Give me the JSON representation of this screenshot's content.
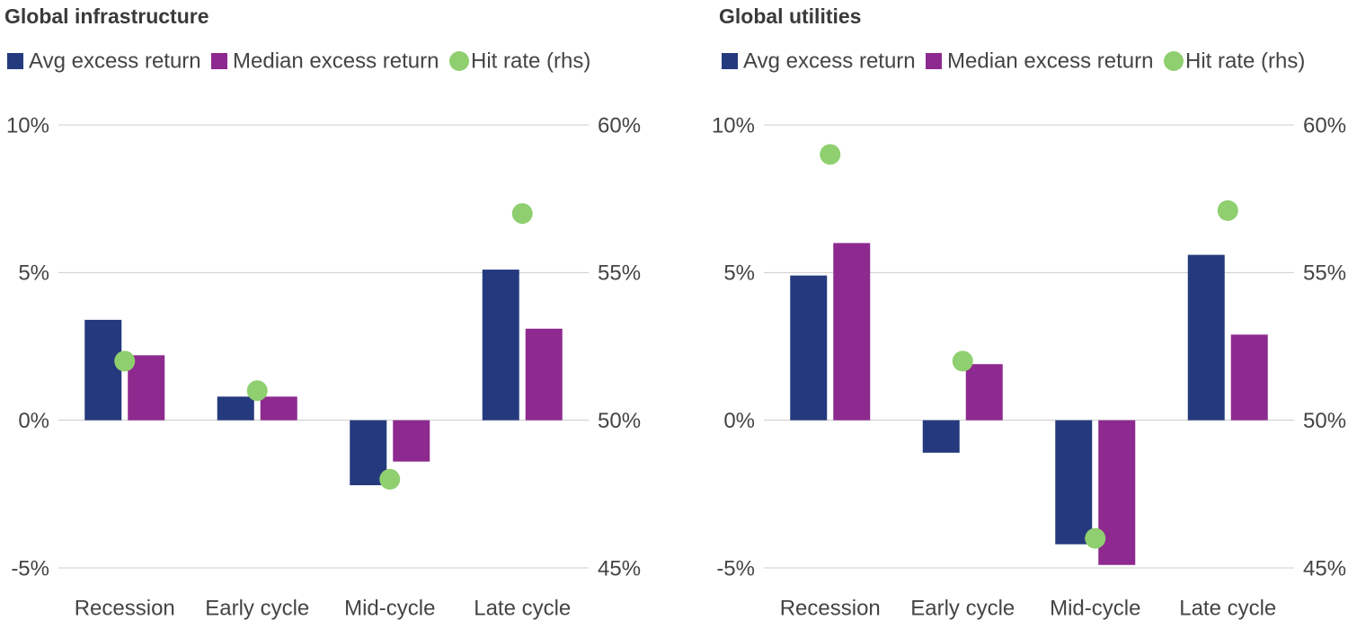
{
  "chart_data": [
    {
      "type": "bar",
      "title": "Global infrastructure",
      "categories": [
        "Recession",
        "Early cycle",
        "Mid-cycle",
        "Late cycle"
      ],
      "series": [
        {
          "name": "Avg excess return",
          "color": "#253a7e",
          "values": [
            3.4,
            0.8,
            -2.2,
            5.1
          ]
        },
        {
          "name": "Median excess return",
          "color": "#8e2a8f",
          "values": [
            2.2,
            0.8,
            -1.4,
            3.1
          ]
        },
        {
          "name": "Hit rate (rhs)",
          "color": "#8fcf6f",
          "type": "scatter",
          "axis": "y2",
          "values": [
            52.0,
            51.0,
            48.0,
            57.0
          ]
        }
      ],
      "ylim": [
        -5,
        10
      ],
      "yticks": [
        {
          "value": -5,
          "label": "-5%"
        },
        {
          "value": 0,
          "label": "0%"
        },
        {
          "value": 5,
          "label": "5%"
        },
        {
          "value": 10,
          "label": "10%"
        }
      ],
      "y2lim": [
        45,
        60
      ],
      "y2ticks": [
        {
          "value": 45,
          "label": "45%"
        },
        {
          "value": 50,
          "label": "50%"
        },
        {
          "value": 55,
          "label": "55%"
        },
        {
          "value": 60,
          "label": "60%"
        }
      ],
      "grid": true,
      "legend": "top"
    },
    {
      "type": "bar",
      "title": "Global utilities",
      "categories": [
        "Recession",
        "Early cycle",
        "Mid-cycle",
        "Late cycle"
      ],
      "series": [
        {
          "name": "Avg excess return",
          "color": "#253a7e",
          "values": [
            4.9,
            -1.1,
            -4.2,
            5.6
          ]
        },
        {
          "name": "Median excess return",
          "color": "#8e2a8f",
          "values": [
            6.0,
            1.9,
            -4.9,
            2.9
          ]
        },
        {
          "name": "Hit rate (rhs)",
          "color": "#8fcf6f",
          "type": "scatter",
          "axis": "y2",
          "values": [
            59.0,
            52.0,
            46.0,
            57.1
          ]
        }
      ],
      "ylim": [
        -5,
        10
      ],
      "yticks": [
        {
          "value": -5,
          "label": "-5%"
        },
        {
          "value": 0,
          "label": "0%"
        },
        {
          "value": 5,
          "label": "5%"
        },
        {
          "value": 10,
          "label": "10%"
        }
      ],
      "y2lim": [
        45,
        60
      ],
      "y2ticks": [
        {
          "value": 45,
          "label": "45%"
        },
        {
          "value": 50,
          "label": "50%"
        },
        {
          "value": 55,
          "label": "55%"
        },
        {
          "value": 60,
          "label": "60%"
        }
      ],
      "grid": true,
      "legend": "top"
    }
  ]
}
